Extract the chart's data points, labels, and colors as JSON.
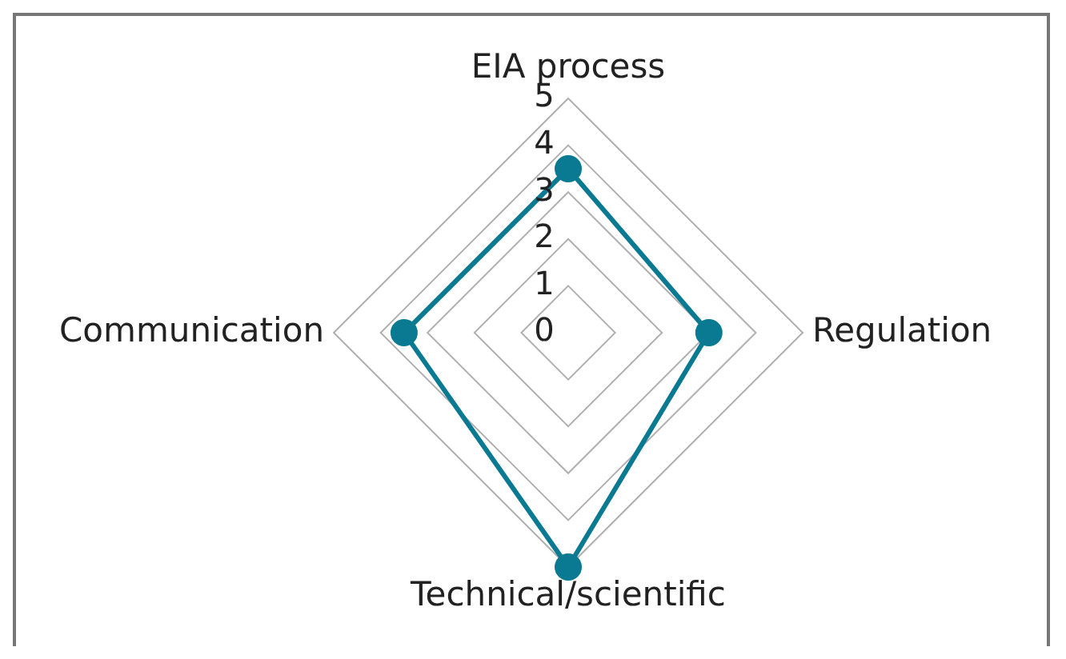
{
  "chart_data": {
    "type": "radar",
    "categories": [
      "EIA process",
      "Regulation",
      "Technical/scientific",
      "Communication"
    ],
    "series": [
      {
        "color": "#0a7a93",
        "values": [
          3.5,
          3,
          5,
          3.5
        ]
      }
    ],
    "ylim": [
      0,
      5
    ],
    "yticks": [
      0,
      1,
      2,
      3,
      4,
      5
    ],
    "grid": true,
    "legend": false,
    "marker": "circle"
  }
}
